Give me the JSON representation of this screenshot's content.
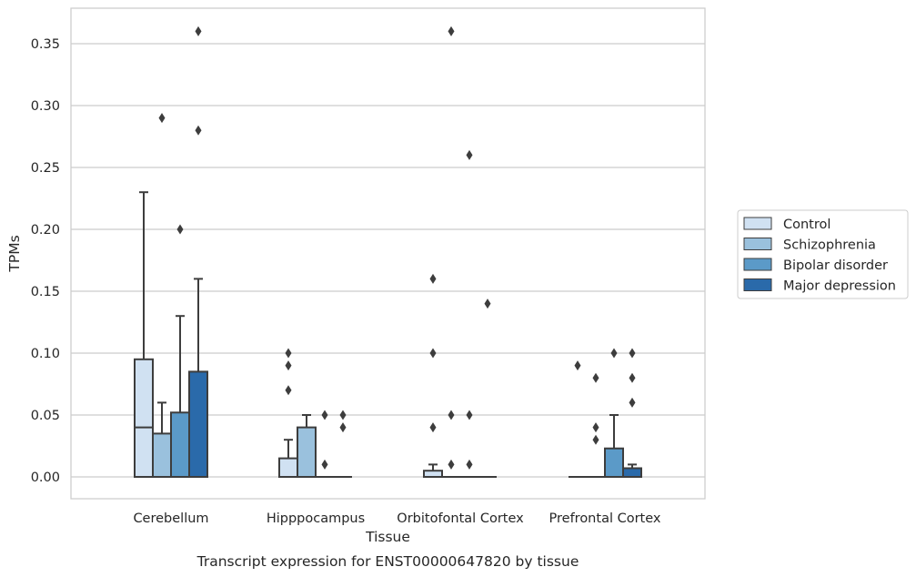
{
  "chart_data": {
    "type": "box",
    "xlabel": "Tissue",
    "ylabel": "TPMs",
    "caption": "Transcript expression for ENST00000647820 by tissue",
    "ylim": [
      -0.018,
      0.378
    ],
    "yticks": [
      "0.00",
      "0.05",
      "0.10",
      "0.15",
      "0.20",
      "0.25",
      "0.30",
      "0.35"
    ],
    "grid": "horizontal",
    "legend_position": "right",
    "categories": [
      "Cerebellum",
      "Hipppocampus",
      "Orbitofontal Cortex",
      "Prefrontal Cortex"
    ],
    "series": [
      {
        "name": "Control",
        "color": "#d0e1f2",
        "boxes": [
          {
            "whislo": 0.0,
            "q1": 0.0,
            "med": 0.04,
            "q3": 0.095,
            "whishi": 0.23,
            "fliers": []
          },
          {
            "whislo": 0.0,
            "q1": 0.0,
            "med": 0.0,
            "q3": 0.015,
            "whishi": 0.03,
            "fliers": [
              0.07,
              0.09,
              0.1
            ]
          },
          {
            "whislo": 0.0,
            "q1": 0.0,
            "med": 0.0,
            "q3": 0.005,
            "whishi": 0.01,
            "fliers": [
              0.04,
              0.1,
              0.16
            ]
          },
          {
            "whislo": 0.0,
            "q1": 0.0,
            "med": 0.0,
            "q3": 0.0,
            "whishi": 0.0,
            "fliers": [
              0.09
            ]
          }
        ]
      },
      {
        "name": "Schizophrenia",
        "color": "#9ac1dd",
        "boxes": [
          {
            "whislo": 0.0,
            "q1": 0.0,
            "med": 0.0,
            "q3": 0.035,
            "whishi": 0.06,
            "fliers": [
              0.29
            ]
          },
          {
            "whislo": 0.0,
            "q1": 0.0,
            "med": 0.0,
            "q3": 0.04,
            "whishi": 0.05,
            "fliers": []
          },
          {
            "whislo": 0.0,
            "q1": 0.0,
            "med": 0.0,
            "q3": 0.0,
            "whishi": 0.0,
            "fliers": [
              0.01,
              0.05,
              0.36
            ]
          },
          {
            "whislo": 0.0,
            "q1": 0.0,
            "med": 0.0,
            "q3": 0.0,
            "whishi": 0.0,
            "fliers": [
              0.03,
              0.04,
              0.08
            ]
          }
        ]
      },
      {
        "name": "Bipolar disorder",
        "color": "#5b9ac8",
        "boxes": [
          {
            "whislo": 0.0,
            "q1": 0.0,
            "med": 0.0,
            "q3": 0.052,
            "whishi": 0.13,
            "fliers": [
              0.2
            ]
          },
          {
            "whislo": 0.0,
            "q1": 0.0,
            "med": 0.0,
            "q3": 0.0,
            "whishi": 0.0,
            "fliers": [
              0.01,
              0.05
            ]
          },
          {
            "whislo": 0.0,
            "q1": 0.0,
            "med": 0.0,
            "q3": 0.0,
            "whishi": 0.0,
            "fliers": [
              0.01,
              0.05,
              0.26
            ]
          },
          {
            "whislo": 0.0,
            "q1": 0.0,
            "med": 0.0,
            "q3": 0.023,
            "whishi": 0.05,
            "fliers": [
              0.1
            ]
          }
        ]
      },
      {
        "name": "Major depression",
        "color": "#2a6aaa",
        "boxes": [
          {
            "whislo": 0.0,
            "q1": 0.0,
            "med": 0.0,
            "q3": 0.085,
            "whishi": 0.16,
            "fliers": [
              0.28,
              0.36
            ]
          },
          {
            "whislo": 0.0,
            "q1": 0.0,
            "med": 0.0,
            "q3": 0.0,
            "whishi": 0.0,
            "fliers": [
              0.04,
              0.05
            ]
          },
          {
            "whislo": 0.0,
            "q1": 0.0,
            "med": 0.0,
            "q3": 0.0,
            "whishi": 0.0,
            "fliers": [
              0.14
            ]
          },
          {
            "whislo": 0.0,
            "q1": 0.0,
            "med": 0.0,
            "q3": 0.007,
            "whishi": 0.01,
            "fliers": [
              0.06,
              0.08,
              0.1
            ]
          }
        ]
      }
    ]
  }
}
